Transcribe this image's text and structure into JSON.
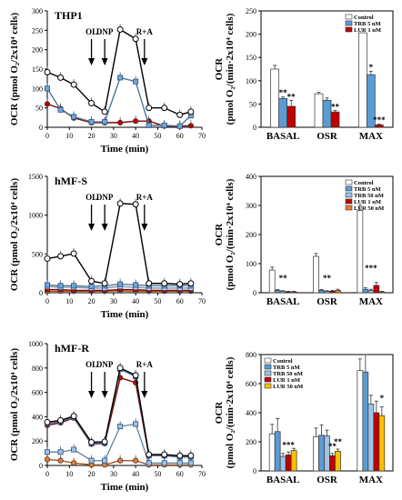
{
  "chart_data": [
    {
      "type": "line",
      "title": "THP1",
      "xlabel": "Time (min)",
      "ylabel": "OCR (pmol O₂/2x10⁴ cells)",
      "xlim": [
        0,
        70
      ],
      "ylim": [
        0,
        300
      ],
      "xticks": [
        0,
        10,
        20,
        30,
        40,
        50,
        60,
        70
      ],
      "yticks": [
        0,
        50,
        100,
        150,
        200,
        250,
        300
      ],
      "annotations": [
        {
          "text": "OL",
          "x": 20
        },
        {
          "text": "DNP",
          "x": 26
        },
        {
          "text": "R+A",
          "x": 44
        }
      ],
      "x": [
        0,
        6,
        12,
        20,
        26,
        33,
        40,
        46,
        53,
        60,
        65
      ],
      "series": [
        {
          "color": "#ffffff",
          "y": [
            142,
            128,
            110,
            62,
            40,
            252,
            228,
            50,
            50,
            32,
            40
          ]
        },
        {
          "color": "#6fa8dc",
          "y": [
            100,
            45,
            27,
            14,
            14,
            128,
            118,
            5,
            5,
            3,
            30
          ]
        },
        {
          "color": "#c00000",
          "y": [
            60,
            48,
            24,
            12,
            12,
            12,
            16,
            16,
            3,
            3,
            4
          ]
        }
      ]
    },
    {
      "type": "bar",
      "ylabel": "OCR (pmol O₂/(min·2x10⁴ cells)",
      "ylim": [
        0,
        250
      ],
      "yticks": [
        0,
        50,
        100,
        150,
        200,
        250
      ],
      "categories": [
        "BASAL",
        "OSR",
        "MAX"
      ],
      "legend_position": "top-right",
      "series": [
        {
          "name": "Control",
          "color": "#ffffff",
          "values": [
            125,
            72,
            203
          ],
          "err": [
            8,
            3,
            0
          ]
        },
        {
          "name": "TRB 5 nM",
          "color": "#5b9bd5",
          "values": [
            62,
            58,
            113
          ],
          "err": [
            3,
            5,
            7
          ]
        },
        {
          "name": "LUR 1 nM",
          "color": "#c00000",
          "values": [
            45,
            33,
            5
          ],
          "err": [
            13,
            3,
            2
          ]
        }
      ],
      "stars": [
        {
          "text": "**",
          "category": 0,
          "series": 1,
          "y": 68
        },
        {
          "text": "**",
          "category": 0,
          "series": 2,
          "y": 60
        },
        {
          "text": "**",
          "category": 1,
          "series": 2,
          "y": 38
        },
        {
          "text": "*",
          "category": 2,
          "series": 1,
          "y": 123
        },
        {
          "text": "***",
          "category": 2,
          "series": 2,
          "y": 10
        }
      ]
    },
    {
      "type": "line",
      "title": "hMF-S",
      "xlabel": "Time (min)",
      "ylabel": "OCR (pmol O₂/2x10⁴ cells)",
      "xlim": [
        0,
        70
      ],
      "ylim": [
        0,
        1500
      ],
      "xticks": [
        0,
        10,
        20,
        30,
        40,
        50,
        60,
        70
      ],
      "yticks": [
        0,
        500,
        1000,
        1500
      ],
      "annotations": [
        {
          "text": "OL",
          "x": 20
        },
        {
          "text": "DNP",
          "x": 26
        },
        {
          "text": "R+A",
          "x": 44
        }
      ],
      "x": [
        0,
        6,
        12,
        20,
        26,
        33,
        40,
        46,
        53,
        60,
        65
      ],
      "series": [
        {
          "color": "#ffffff",
          "y": [
            440,
            470,
            505,
            150,
            120,
            1150,
            1140,
            120,
            120,
            110,
            120
          ]
        },
        {
          "color": "#6fa8dc",
          "y": [
            100,
            90,
            90,
            80,
            90,
            110,
            100,
            90,
            90,
            90,
            90
          ]
        },
        {
          "color": "#bdd7ee",
          "y": [
            80,
            70,
            70,
            60,
            60,
            80,
            70,
            60,
            60,
            60,
            60
          ]
        },
        {
          "color": "#c00000",
          "y": [
            40,
            40,
            30,
            30,
            30,
            40,
            40,
            30,
            30,
            30,
            30
          ]
        },
        {
          "color": "#ed7d31",
          "y": [
            20,
            20,
            20,
            20,
            20,
            25,
            20,
            20,
            20,
            20,
            20
          ]
        }
      ]
    },
    {
      "type": "bar",
      "ylabel": "OCR (pmol O₂/(min·2x10⁴ cells)",
      "ylim": [
        0,
        400
      ],
      "yticks": [
        0,
        100,
        200,
        300,
        400
      ],
      "categories": [
        "BASAL",
        "OSR",
        "MAX"
      ],
      "legend_position": "top-right",
      "series": [
        {
          "name": "Control",
          "color": "#ffffff",
          "values": [
            78,
            125,
            283
          ],
          "err": [
            10,
            10,
            18
          ]
        },
        {
          "name": "TRB 5 nM",
          "color": "#5b9bd5",
          "values": [
            8,
            8,
            12
          ],
          "err": [
            3,
            3,
            5
          ]
        },
        {
          "name": "TRB 50 nM",
          "color": "#9dc3e6",
          "values": [
            5,
            5,
            8
          ],
          "err": [
            2,
            2,
            4
          ]
        },
        {
          "name": "LUR 1 nM",
          "color": "#c00000",
          "values": [
            3,
            5,
            25
          ],
          "err": [
            2,
            3,
            10
          ]
        },
        {
          "name": "LUR 50 nM",
          "color": "#ed7d31",
          "values": [
            3,
            8,
            3
          ],
          "err": [
            2,
            4,
            2
          ]
        }
      ],
      "stars": [
        {
          "text": "**",
          "category": 0,
          "series": 2,
          "y": 40
        },
        {
          "text": "**",
          "category": 1,
          "series": 2,
          "y": 40
        },
        {
          "text": "***",
          "category": 2,
          "series": 2,
          "y": 75
        }
      ]
    },
    {
      "type": "line",
      "title": "hMF-R",
      "xlabel": "Time (min)",
      "ylabel": "OCR (pmol O₂/2x10⁴ cells)",
      "xlim": [
        0,
        70
      ],
      "ylim": [
        0,
        1000
      ],
      "xticks": [
        0,
        10,
        20,
        30,
        40,
        50,
        60,
        70
      ],
      "yticks": [
        0,
        200,
        400,
        600,
        800,
        1000
      ],
      "annotations": [
        {
          "text": "OL",
          "x": 20
        },
        {
          "text": "DNP",
          "x": 26
        },
        {
          "text": "R+A",
          "x": 44
        }
      ],
      "x": [
        0,
        6,
        12,
        20,
        26,
        33,
        40,
        46,
        53,
        60,
        65
      ],
      "series": [
        {
          "color": "#ffffff",
          "y": [
            355,
            370,
            405,
            190,
            195,
            800,
            740,
            90,
            90,
            80,
            80
          ]
        },
        {
          "color": "#6fa8dc",
          "y": [
            345,
            360,
            395,
            180,
            185,
            790,
            730,
            80,
            80,
            70,
            70
          ]
        },
        {
          "color": "#c00000",
          "y": [
            330,
            350,
            390,
            175,
            180,
            720,
            680,
            80,
            80,
            70,
            70
          ]
        },
        {
          "color": "#9dc3e6",
          "y": [
            110,
            110,
            130,
            40,
            40,
            320,
            340,
            20,
            20,
            20,
            20
          ]
        },
        {
          "color": "#ed7d31",
          "y": [
            50,
            40,
            20,
            5,
            5,
            40,
            40,
            5,
            5,
            5,
            5
          ]
        }
      ]
    },
    {
      "type": "bar",
      "ylabel": "OCR (pmol O₂/(min·2x10⁴ cells)",
      "ylim": [
        0,
        800
      ],
      "yticks": [
        0,
        200,
        400,
        600,
        800
      ],
      "categories": [
        "BASAL",
        "OSR",
        "MAX"
      ],
      "legend_position": "top-left",
      "series": [
        {
          "name": "Control",
          "color": "#ffffff",
          "values": [
            255,
            235,
            690
          ],
          "err": [
            65,
            60,
            80
          ]
        },
        {
          "name": "TRB 5 nM",
          "color": "#5b9bd5",
          "values": [
            270,
            245,
            680
          ],
          "err": [
            90,
            70,
            120
          ]
        },
        {
          "name": "TRB 50 nM",
          "color": "#9dc3e6",
          "values": [
            100,
            240,
            460
          ],
          "err": [
            20,
            40,
            60
          ]
        },
        {
          "name": "LUR 1 nM",
          "color": "#c00000",
          "values": [
            110,
            105,
            400
          ],
          "err": [
            20,
            15,
            80
          ]
        },
        {
          "name": "LUR 50 nM",
          "color": "#ffc000",
          "values": [
            140,
            135,
            380
          ],
          "err": [
            15,
            15,
            60
          ]
        }
      ],
      "stars": [
        {
          "text": "***",
          "category": 0,
          "series": 3,
          "y": 160
        },
        {
          "text": "**",
          "category": 1,
          "series": 3,
          "y": 150
        },
        {
          "text": "**",
          "category": 1,
          "series": 4,
          "y": 180
        },
        {
          "text": "*",
          "category": 2,
          "series": 4,
          "y": 480
        }
      ]
    }
  ]
}
